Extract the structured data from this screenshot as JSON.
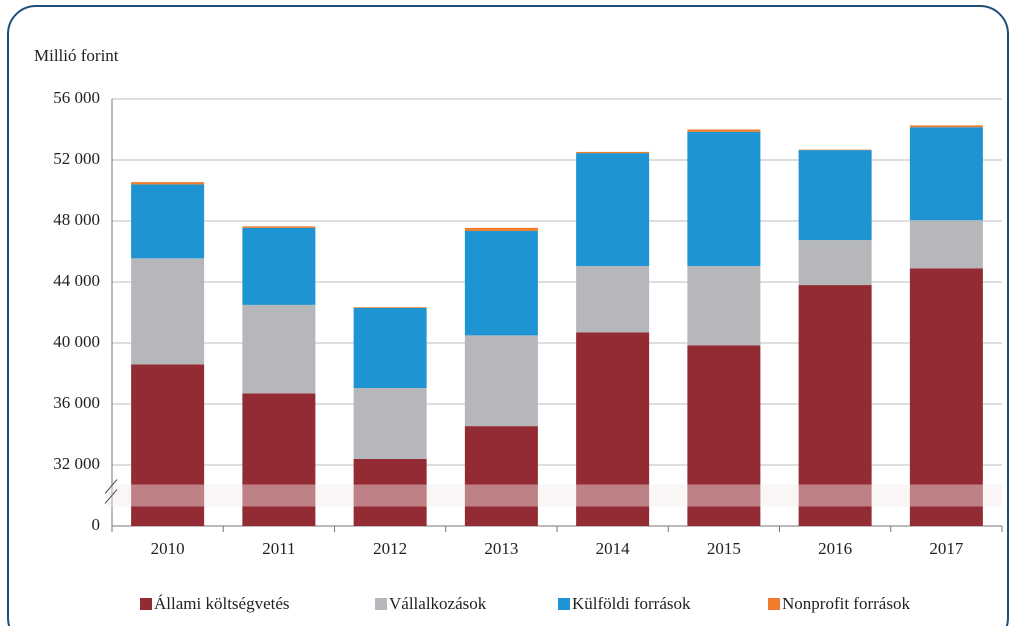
{
  "chart_data": {
    "type": "stacked_bar",
    "y_label": "Millió forint",
    "categories": [
      "2010",
      "2011",
      "2012",
      "2013",
      "2014",
      "2015",
      "2016",
      "2017"
    ],
    "series": [
      {
        "name": "Állami költségvetés",
        "color": "#922b33",
        "values": [
          38600,
          36700,
          32400,
          34550,
          40700,
          39850,
          43800,
          44900
        ]
      },
      {
        "name": "Vállalkozások",
        "color": "#b6b7bb",
        "values": [
          6950,
          5800,
          4650,
          5950,
          4350,
          5200,
          2950,
          3150
        ]
      },
      {
        "name": "Külföldi források",
        "color": "#1f94d2",
        "values": [
          4850,
          5050,
          5250,
          6850,
          7400,
          8800,
          5900,
          6100
        ]
      },
      {
        "name": "Nonprofit források",
        "color": "#ef7d2c",
        "values": [
          150,
          100,
          50,
          200,
          80,
          150,
          30,
          120
        ]
      }
    ],
    "ylim": [
      0,
      56000
    ],
    "yticks": [
      0,
      {
        "value": 32000,
        "label": "32 000"
      },
      {
        "value": 36000,
        "label": "36 000"
      },
      {
        "value": 40000,
        "label": "40 000"
      },
      {
        "value": 44000,
        "label": "44 000"
      },
      {
        "value": 48000,
        "label": "48 000"
      },
      {
        "value": 52000,
        "label": "52 000"
      },
      {
        "value": 56000,
        "label": "56 000"
      }
    ],
    "axis_break": true,
    "grid": true,
    "legend": "bottom"
  }
}
